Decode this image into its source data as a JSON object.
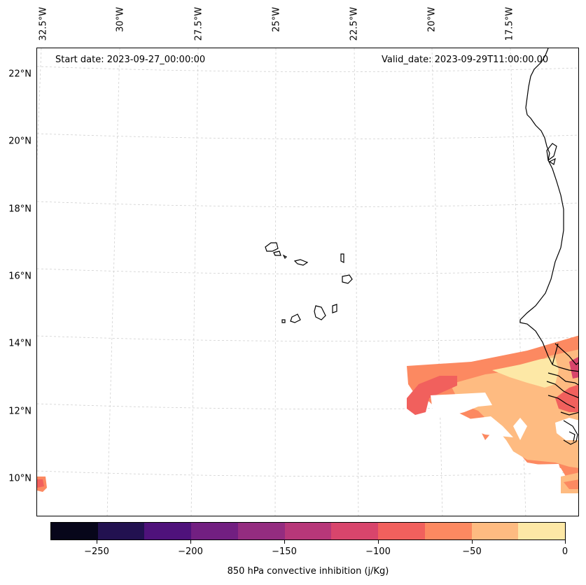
{
  "header": {
    "start_date": "Start date: 2023-09-27_00:00:00",
    "valid_date": "Valid_date: 2023-09-29T11:00:00.00"
  },
  "axes": {
    "lat_labels": [
      "22°N",
      "20°N",
      "18°N",
      "16°N",
      "14°N",
      "12°N",
      "10°N"
    ],
    "lon_labels": [
      "32.5°W",
      "30°W",
      "27.5°W",
      "25°W",
      "22.5°W",
      "20°W",
      "17.5°W"
    ]
  },
  "colorbar": {
    "title": "850 hPa convective inhibition (j/Kg)",
    "tick_labels": [
      "−250",
      "−200",
      "−150",
      "−100",
      "−50",
      "0"
    ],
    "colors": [
      "#07061a",
      "#221150",
      "#4f127b",
      "#721f81",
      "#942c80",
      "#b73779",
      "#d8456c",
      "#f1605d",
      "#fc8961",
      "#febb81",
      "#fde8a6"
    ]
  },
  "map": {
    "fill_colors": {
      "band_75_50": "#fc8961",
      "band_100_75": "#f1605d",
      "band_50_25": "#febb81",
      "band_25_0": "#fde8a6",
      "band_125_100": "#d8456c"
    },
    "grid_color": "#d0d0d0",
    "coast_color": "#000000"
  }
}
